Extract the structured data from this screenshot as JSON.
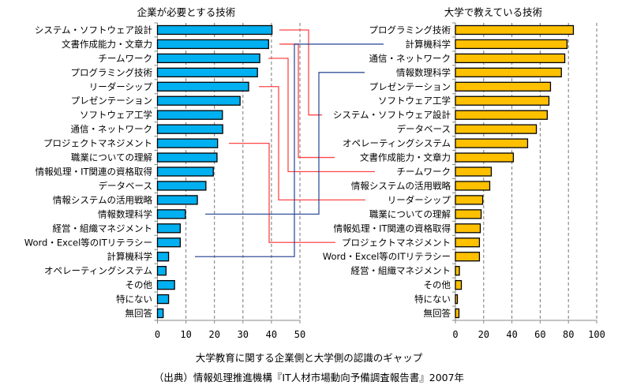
{
  "chart_data": [
    {
      "type": "bar",
      "orientation": "horizontal",
      "title": "企業が必要とする技術",
      "color": "#00B0F0",
      "xlim": [
        0,
        50
      ],
      "xticks": [
        "0",
        "10",
        "20",
        "30",
        "40",
        "50"
      ],
      "grid": true,
      "categories": [
        "システム・ソフトウェア設計",
        "文書作成能力・文章力",
        "チームワーク",
        "プログラミング技術",
        "リーダーシップ",
        "プレゼンテーション",
        "ソフトウェア工学",
        "通信・ネットワーク",
        "プロジェクトマネジメント",
        "職業についての理解",
        "情報処理・IT関連の資格取得",
        "データベース",
        "情報システムの活用戦略",
        "情報数理科学",
        "経営・組織マネジメント",
        "Word・Excel等のITリテラシー",
        "計算機科学",
        "オペレーティングシステム",
        "その他",
        "特にない",
        "無回答"
      ],
      "values": [
        40.2,
        39,
        35.9,
        35.1,
        32,
        29,
        22.8,
        22.9,
        21.1,
        20.9,
        19.6,
        17,
        14,
        9.8,
        8,
        8,
        3.9,
        3,
        6,
        3.9,
        2
      ]
    },
    {
      "type": "bar",
      "orientation": "horizontal",
      "title": "大学で教えている技術",
      "color": "#FFC000",
      "xlim": [
        0,
        100
      ],
      "xticks": [
        "0",
        "20",
        "40",
        "60",
        "80",
        "100"
      ],
      "grid": true,
      "categories": [
        "プログラミング技術",
        "計算機科学",
        "通信・ネットワーク",
        "情報数理科学",
        "プレゼンテーション",
        "ソフトウェア工学",
        "システム・ソフトウェア設計",
        "データベース",
        "オペレーティングシステム",
        "文書作成能力・文章力",
        "チームワーク",
        "情報システムの活用戦略",
        "リーダーシップ",
        "職業についての理解",
        "情報処理・IT関連の資格取得",
        "プロジェクトマネジメント",
        "Word・Excel等のITリテラシー",
        "経営・組織マネジメント",
        "その他",
        "特にない",
        "無回答"
      ],
      "values": [
        83.5,
        79,
        77.4,
        75,
        67.3,
        66.2,
        65,
        57.3,
        51.1,
        41,
        25.4,
        24.3,
        19.3,
        18.2,
        17.6,
        17,
        17,
        2.8,
        4.2,
        1.4,
        2.5
      ]
    }
  ],
  "connectors": [
    {
      "item": "システム・ソフトウェア設計",
      "color": "#FF3333"
    },
    {
      "item": "文書作成能力・文章力",
      "color": "#FF3333"
    },
    {
      "item": "チームワーク",
      "color": "#FF3333"
    },
    {
      "item": "リーダーシップ",
      "color": "#FF3333"
    },
    {
      "item": "プロジェクトマネジメント",
      "color": "#FF3333"
    },
    {
      "item": "計算機科学",
      "color": "#1F3F8F"
    },
    {
      "item": "情報数理科学",
      "color": "#1F3F8F"
    }
  ],
  "caption": "大学教育に関する企業側と大学側の認識のギャップ",
  "source": "（出典）情報処理推進機構『IT人材市場動向予備調査報告書』2007年"
}
